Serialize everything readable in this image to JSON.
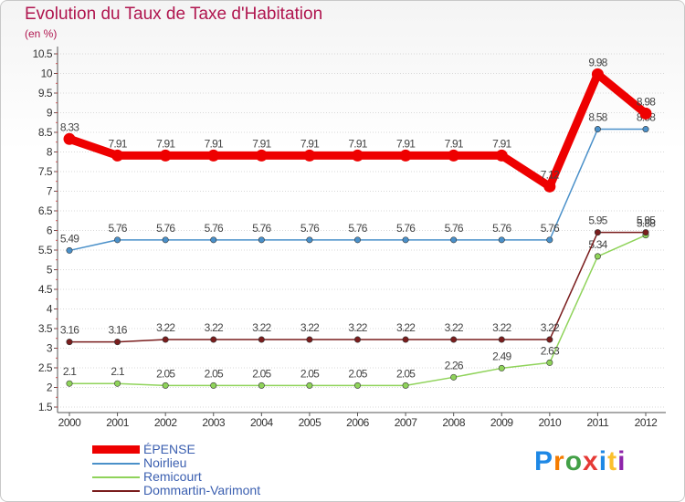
{
  "header": {
    "title": "Evolution du Taux de Taxe d'Habitation",
    "unit": "(en %)"
  },
  "logo": {
    "letters": [
      "P",
      "r",
      "o",
      "x",
      "i",
      "t",
      "i"
    ],
    "colors": [
      "#1e88e5",
      "#f57c00",
      "#43a047",
      "#e53935",
      "#1e88e5",
      "#fbc02d",
      "#8e24aa"
    ]
  },
  "chart_data": {
    "type": "line",
    "title": "Evolution du Taux de Taxe d'Habitation",
    "ylabel": "(en %)",
    "xlabel": "",
    "categories": [
      "2000",
      "2001",
      "2002",
      "2003",
      "2004",
      "2005",
      "2006",
      "2007",
      "2008",
      "2009",
      "2010",
      "2011",
      "2012"
    ],
    "ylim": [
      1.5,
      10.5
    ],
    "yticks": [
      "1.5",
      "2",
      "2.5",
      "3",
      "3.5",
      "4",
      "4.5",
      "5",
      "5.5",
      "6",
      "6.5",
      "7",
      "7.5",
      "8",
      "8.5",
      "9",
      "9.5",
      "10",
      "10.5"
    ],
    "legend_position": "bottom-left",
    "series": [
      {
        "name": "ÉPENSE",
        "color": "#ee0000",
        "emphasis": "heavy",
        "values": [
          8.33,
          7.91,
          7.91,
          7.91,
          7.91,
          7.91,
          7.91,
          7.91,
          7.91,
          7.91,
          7.12,
          9.98,
          8.98
        ],
        "labels": [
          "8.33",
          "7.91",
          "7.91",
          "7.91",
          "7.91",
          "7.91",
          "7.91",
          "7.91",
          "7.91",
          "7.91",
          "7.12",
          "9.98",
          "8.98"
        ]
      },
      {
        "name": "Noirlieu",
        "color": "#4a90c9",
        "emphasis": "normal",
        "values": [
          5.49,
          5.76,
          5.76,
          5.76,
          5.76,
          5.76,
          5.76,
          5.76,
          5.76,
          5.76,
          5.76,
          8.58,
          8.58
        ],
        "labels": [
          "5.49",
          "5.76",
          "5.76",
          "5.76",
          "5.76",
          "5.76",
          "5.76",
          "5.76",
          "5.76",
          "5.76",
          "5.76",
          "8.58",
          "8.58"
        ]
      },
      {
        "name": "Remicourt",
        "color": "#8fd35a",
        "emphasis": "normal",
        "values": [
          2.1,
          2.1,
          2.05,
          2.05,
          2.05,
          2.05,
          2.05,
          2.05,
          2.26,
          2.49,
          2.63,
          5.34,
          5.88
        ],
        "labels": [
          "2.1",
          "2.1",
          "2.05",
          "2.05",
          "2.05",
          "2.05",
          "2.05",
          "2.05",
          "2.26",
          "2.49",
          "2.63",
          "5.34",
          "5.88"
        ]
      },
      {
        "name": "Dommartin-Varimont",
        "color": "#7a1d1d",
        "emphasis": "normal",
        "values": [
          3.16,
          3.16,
          3.22,
          3.22,
          3.22,
          3.22,
          3.22,
          3.22,
          3.22,
          3.22,
          3.22,
          5.95,
          5.95
        ],
        "labels": [
          "3.16",
          "3.16",
          "3.22",
          "3.22",
          "3.22",
          "3.22",
          "3.22",
          "3.22",
          "3.22",
          "3.22",
          "3.22",
          "5.95",
          "5.95"
        ]
      }
    ]
  }
}
